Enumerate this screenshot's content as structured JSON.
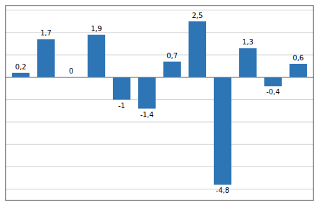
{
  "chart_data": {
    "type": "bar",
    "categories": [
      null,
      null,
      null,
      null,
      null,
      null,
      null,
      null,
      null,
      null,
      null,
      null
    ],
    "values": [
      0.2,
      1.7,
      0.0,
      1.9,
      -1.0,
      -1.4,
      0.7,
      2.5,
      -4.8,
      1.3,
      -0.4,
      0.6
    ],
    "value_labels": [
      "0,2",
      "1,7",
      "0",
      "1,9",
      "-1",
      "-1,4",
      "0,7",
      "2,5",
      "-4,8",
      "1,3",
      "-0,4",
      "0,6"
    ],
    "color": "#2E75B6",
    "ylim": [
      -5.5,
      3.2
    ],
    "yticks": [
      -5,
      -4,
      -3,
      -2,
      -1,
      0,
      1,
      2,
      3
    ],
    "grid": true,
    "data_labels": true,
    "tick_labels": false
  }
}
